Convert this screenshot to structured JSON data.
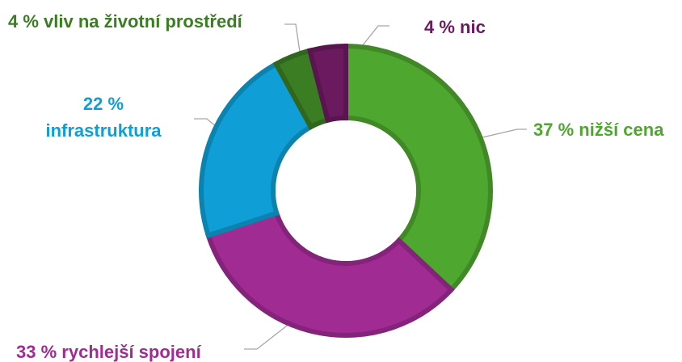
{
  "chart_data": {
    "type": "donut",
    "categories": [
      "nižší cena",
      "rychlejší spojení",
      "infrastruktura",
      "vliv na životní prostředí",
      "nic"
    ],
    "values": [
      37,
      33,
      22,
      4,
      4
    ],
    "value_labels": [
      "37 %",
      "33 %",
      "22 %",
      "4 %",
      "4 %"
    ],
    "colors": [
      "#4ea72e",
      "#a02b93",
      "#0f9ed5",
      "#3b7d23",
      "#6b1a5f"
    ]
  }
}
